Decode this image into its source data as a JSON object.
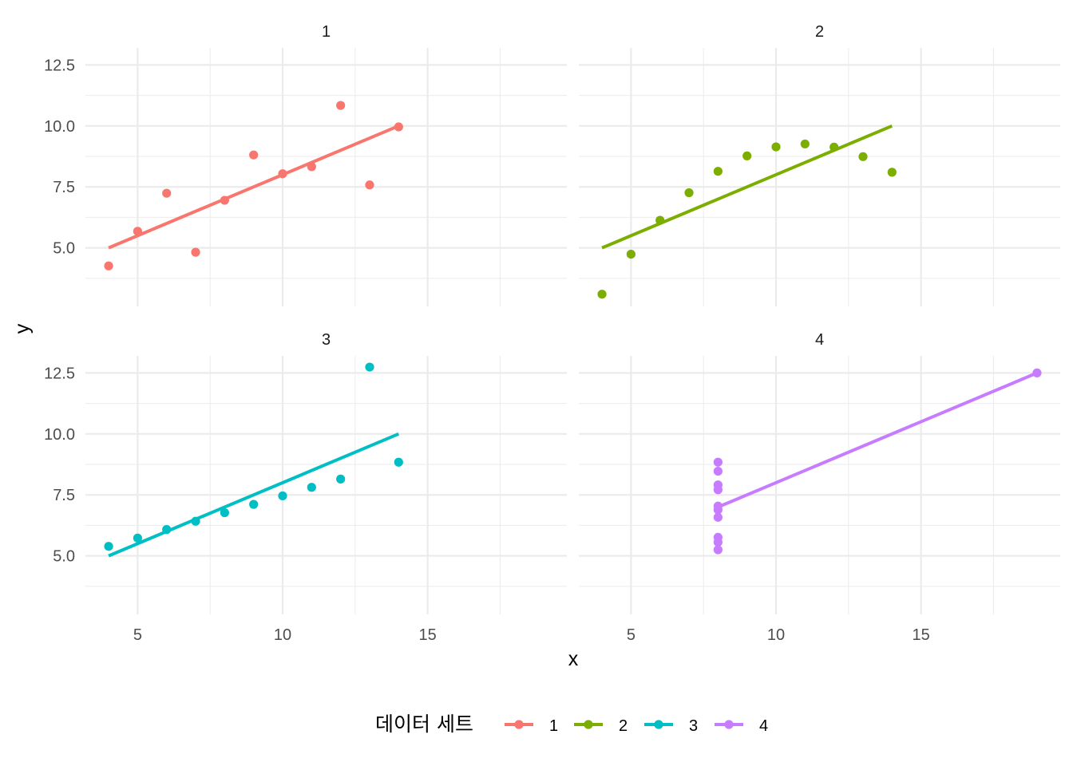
{
  "chart_data": {
    "type": "scatter",
    "facet_layout": "2x2",
    "shared_scales": true,
    "xlabel": "x",
    "ylabel": "y",
    "xlim": [
      3.2,
      19.8
    ],
    "ylim": [
      2.6,
      13.2
    ],
    "x_ticks": [
      5,
      10,
      15
    ],
    "x_tick_labels": [
      "5",
      "10",
      "15"
    ],
    "y_ticks": [
      5,
      7.5,
      10,
      12.5
    ],
    "y_tick_labels": [
      "5.0",
      "7.5",
      "10.0",
      "12.5"
    ],
    "grid": true,
    "legend": {
      "title": "데이터 세트",
      "position": "bottom",
      "entries": [
        "1",
        "2",
        "3",
        "4"
      ]
    },
    "panels": [
      {
        "label": "1",
        "color": "#F8766D",
        "x": [
          10,
          8,
          13,
          9,
          11,
          14,
          6,
          4,
          12,
          7,
          5
        ],
        "y": [
          8.04,
          6.95,
          7.58,
          8.81,
          8.33,
          9.96,
          7.24,
          4.26,
          10.84,
          4.82,
          5.68
        ],
        "fit_line": {
          "x": [
            4,
            14
          ],
          "y": [
            5.0,
            10.0
          ]
        }
      },
      {
        "label": "2",
        "color": "#7CAE00",
        "x": [
          10,
          8,
          13,
          9,
          11,
          14,
          6,
          4,
          12,
          7,
          5
        ],
        "y": [
          9.14,
          8.14,
          8.74,
          8.77,
          9.26,
          8.1,
          6.13,
          3.1,
          9.13,
          7.26,
          4.74
        ],
        "fit_line": {
          "x": [
            4,
            14
          ],
          "y": [
            5.0,
            10.0
          ]
        }
      },
      {
        "label": "3",
        "color": "#00BFC4",
        "x": [
          10,
          8,
          13,
          9,
          11,
          14,
          6,
          4,
          12,
          7,
          5
        ],
        "y": [
          7.46,
          6.77,
          12.74,
          7.11,
          7.81,
          8.84,
          6.08,
          5.39,
          8.15,
          6.42,
          5.73
        ],
        "fit_line": {
          "x": [
            4,
            14
          ],
          "y": [
            5.0,
            10.0
          ]
        }
      },
      {
        "label": "4",
        "color": "#C77CFF",
        "x": [
          8,
          8,
          8,
          8,
          8,
          8,
          8,
          19,
          8,
          8,
          8
        ],
        "y": [
          6.58,
          5.76,
          7.71,
          8.84,
          8.47,
          7.04,
          5.25,
          12.5,
          5.56,
          7.91,
          6.89
        ],
        "fit_line": {
          "x": [
            8,
            19
          ],
          "y": [
            7.0,
            12.5
          ]
        }
      }
    ]
  }
}
